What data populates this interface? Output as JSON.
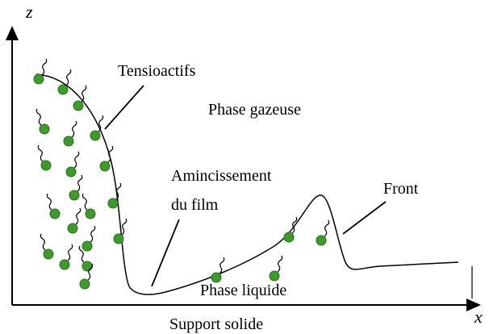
{
  "axes": {
    "z": "z",
    "x": "x"
  },
  "labels": {
    "surfactants": "Tensioactifs",
    "gas": "Phase gazeuse",
    "thinning_line1": "Amincissement",
    "thinning_line2": "du film",
    "front": "Front",
    "liquid": "Phase liquide",
    "support": "Support solide"
  }
}
